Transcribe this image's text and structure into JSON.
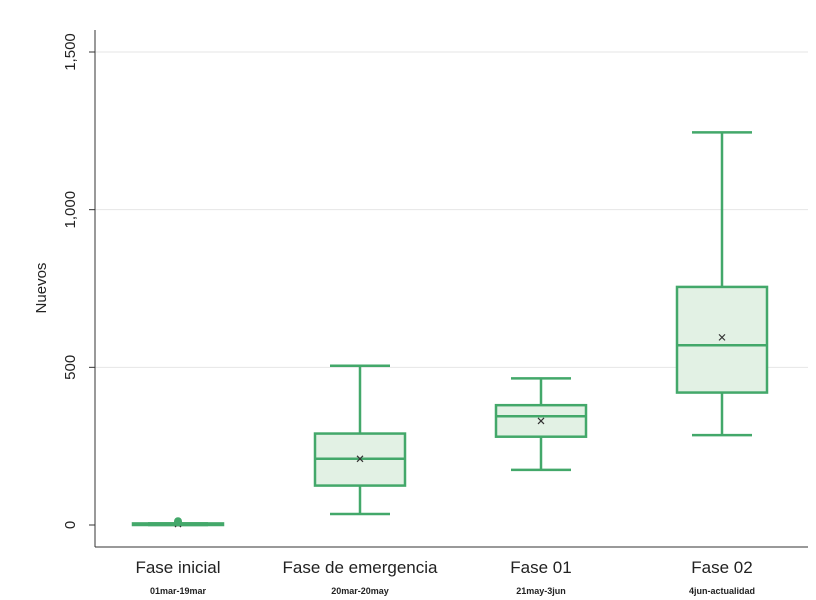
{
  "chart_data": {
    "type": "boxplot",
    "title": "",
    "xlabel": "",
    "ylabel": "Nuevos",
    "ylim": [
      0,
      1500
    ],
    "yticks": [
      0,
      500,
      1000,
      1500
    ],
    "ytick_labels": [
      "0",
      "500",
      "1,000",
      "1,500"
    ],
    "grid": true,
    "categories": [
      "Fase inicial",
      "Fase de emergencia",
      "Fase 01",
      "Fase 02"
    ],
    "subtitles": [
      "01mar-19mar",
      "20mar-20may",
      "21may-3jun",
      "4jun-actualidad"
    ],
    "boxes": [
      {
        "min": 0,
        "q1": 0,
        "median": 2,
        "q3": 5,
        "max": 5,
        "mean": 3,
        "outliers": [
          8,
          12
        ]
      },
      {
        "min": 35,
        "q1": 125,
        "median": 210,
        "q3": 290,
        "max": 505,
        "mean": 210
      },
      {
        "min": 175,
        "q1": 280,
        "median": 345,
        "q3": 380,
        "max": 465,
        "mean": 330
      },
      {
        "min": 285,
        "q1": 420,
        "median": 570,
        "q3": 755,
        "max": 1245,
        "mean": 595
      }
    ],
    "colors": {
      "box_stroke": "#43a86a",
      "box_fill": "#e2f1e4",
      "gridline": "#e6e6e6",
      "axis": "#333333"
    }
  }
}
